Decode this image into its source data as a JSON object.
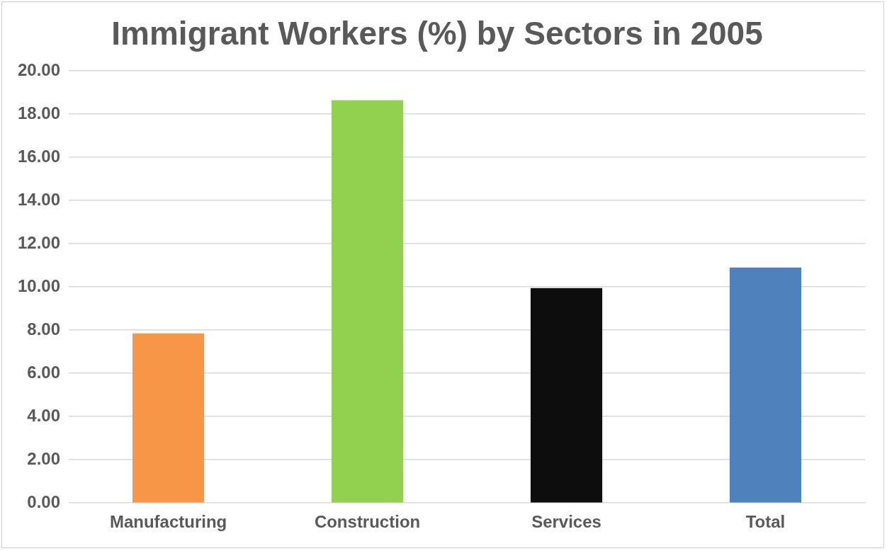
{
  "chart_data": {
    "type": "bar",
    "title": "Immigrant Workers (%) by Sectors in 2005",
    "categories": [
      "Manufacturing",
      "Construction",
      "Services",
      "Total"
    ],
    "values": [
      7.85,
      18.65,
      9.95,
      10.9
    ],
    "colors": [
      "#f79646",
      "#92d050",
      "#0d0d0d",
      "#4f81bd"
    ],
    "ylim": [
      0,
      20
    ],
    "yticks": [
      {
        "value": 0,
        "label": "0.00"
      },
      {
        "value": 2,
        "label": "2.00"
      },
      {
        "value": 4,
        "label": "4.00"
      },
      {
        "value": 6,
        "label": "6.00"
      },
      {
        "value": 8,
        "label": "8.00"
      },
      {
        "value": 10,
        "label": "10.00"
      },
      {
        "value": 12,
        "label": "12.00"
      },
      {
        "value": 14,
        "label": "14.00"
      },
      {
        "value": 16,
        "label": "16.00"
      },
      {
        "value": 18,
        "label": "18.00"
      },
      {
        "value": 20,
        "label": "20.00"
      }
    ],
    "grid": "y",
    "legend": false
  }
}
